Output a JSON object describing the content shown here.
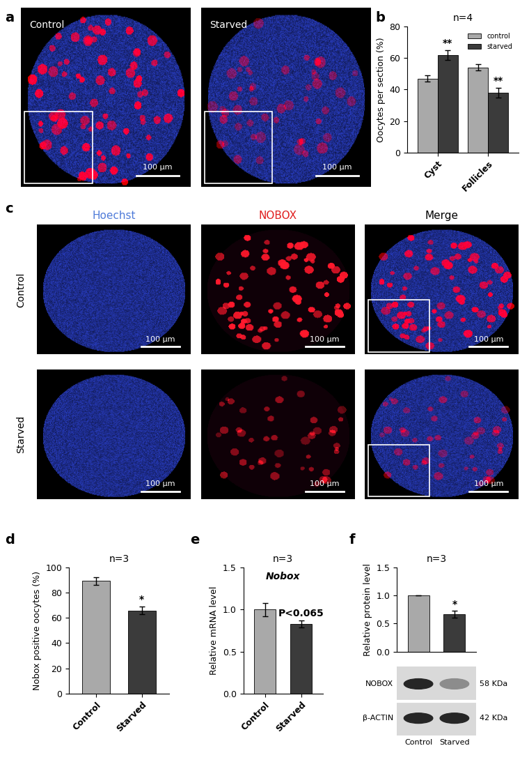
{
  "chart_data": [
    {
      "type": "bar",
      "subtitle": "n=4",
      "y_label": "Oocytes per section (%)",
      "categories": [
        "Cyst",
        "Follicles"
      ],
      "series": [
        {
          "name": "control",
          "color": "#a9a9a9",
          "values": [
            47,
            54
          ],
          "errors": [
            2,
            2
          ]
        },
        {
          "name": "starved",
          "color": "#3b3b3b",
          "values": [
            62,
            38
          ],
          "errors": [
            3,
            3
          ]
        }
      ],
      "ylim": [
        0,
        80
      ],
      "yticks": [
        0,
        20,
        40,
        60,
        80
      ],
      "legend": "upper right",
      "annotations": [
        {
          "text": "**",
          "series": "starved",
          "category": "Cyst"
        },
        {
          "text": "**",
          "series": "starved",
          "category": "Follicles"
        }
      ]
    },
    {
      "type": "bar",
      "subtitle": "n=3",
      "y_label": "Nobox positive oocytes (%)",
      "categories": [
        "Control",
        "Starved"
      ],
      "values": [
        89.5,
        66
      ],
      "errors": [
        3,
        3
      ],
      "colors": [
        "#a9a9a9",
        "#3b3b3b"
      ],
      "ylim": [
        0,
        100
      ],
      "yticks": [
        0,
        20,
        40,
        60,
        80,
        100
      ],
      "annotations": [
        {
          "text": "*",
          "category": "Starved"
        }
      ]
    },
    {
      "type": "bar",
      "subtitle": "n=3",
      "title": "Nobox",
      "y_label": "Relative mRNA level",
      "categories": [
        "Control",
        "Starved"
      ],
      "values": [
        1.0,
        0.83
      ],
      "errors": [
        0.08,
        0.04
      ],
      "colors": [
        "#a9a9a9",
        "#3b3b3b"
      ],
      "ylim": [
        0,
        1.5
      ],
      "yticks": [
        0.0,
        0.5,
        1.0,
        1.5
      ],
      "annotations": [
        {
          "text": "P<0.065",
          "category": "Starved"
        }
      ]
    },
    {
      "type": "bar",
      "subtitle": "n=3",
      "y_label": "Relative protein level",
      "categories": [
        "Control",
        "Starved"
      ],
      "values": [
        1.0,
        0.67
      ],
      "errors": [
        0,
        0.06
      ],
      "colors": [
        "#a9a9a9",
        "#3b3b3b"
      ],
      "ylim": [
        0,
        1.5
      ],
      "yticks": [
        0.0,
        0.5,
        1.0,
        1.5
      ],
      "tick_labels": "y",
      "annotations": [
        {
          "text": "*",
          "category": "Starved"
        }
      ]
    }
  ],
  "panel_labels": [
    "a",
    "b",
    "c",
    "d",
    "e",
    "f"
  ],
  "panel_a": {
    "labels": [
      "Control",
      "Starved"
    ],
    "scale_bar": "100 µm"
  },
  "panel_c": {
    "columns": [
      "Hoechst",
      "NOBOX",
      "Merge"
    ],
    "column_colors": [
      "#4f7bd9",
      "#e02020",
      "#000000"
    ],
    "rows": [
      "Control",
      "Starved"
    ],
    "scale_bar": "100 µm"
  },
  "blot": {
    "bands": [
      {
        "label": "NOBOX",
        "size": "58 KDa"
      },
      {
        "label": "β-ACTIN",
        "size": "42 KDa"
      }
    ]
  }
}
